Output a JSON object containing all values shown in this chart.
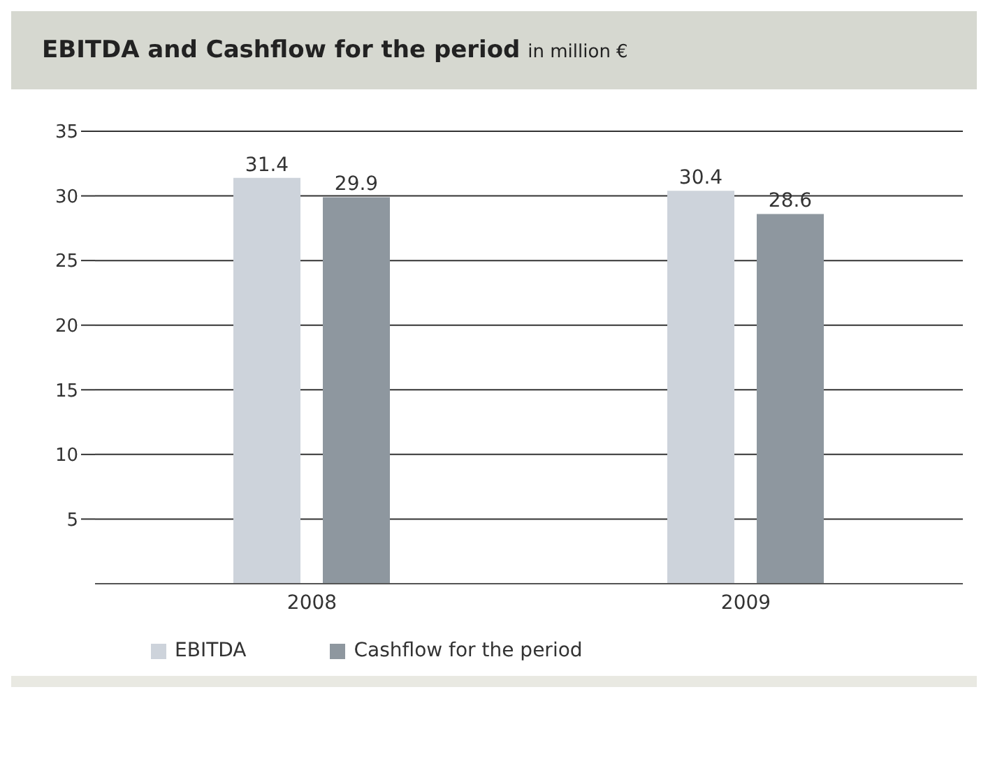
{
  "chart_data": {
    "type": "bar",
    "title": "EBITDA and Cashflow for the period",
    "subtitle": "in million €",
    "categories": [
      "2008",
      "2009"
    ],
    "series": [
      {
        "name": "EBITDA",
        "color": "#cdd3db",
        "values": [
          31.4,
          30.4
        ]
      },
      {
        "name": "Cashflow for the period",
        "color": "#8e979f",
        "values": [
          29.9,
          28.6
        ]
      }
    ],
    "ylim": [
      0,
      35
    ],
    "yticks": [
      5,
      10,
      15,
      20,
      25,
      30,
      35
    ],
    "grid": "y",
    "legend": "bottom left",
    "data_labels": true
  }
}
